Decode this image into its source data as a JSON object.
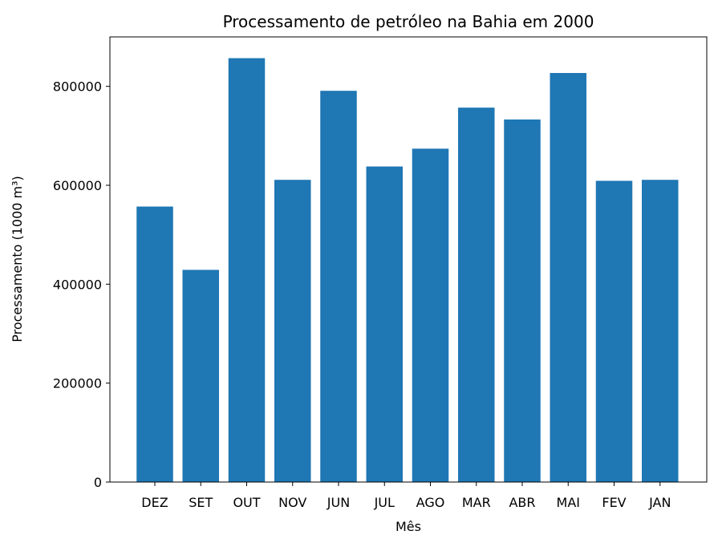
{
  "chart_data": {
    "type": "bar",
    "title": "Processamento de petróleo na Bahia em 2000",
    "xlabel": "Mês",
    "ylabel": "Processamento (1000 m³)",
    "categories": [
      "DEZ",
      "SET",
      "OUT",
      "NOV",
      "JUN",
      "JUL",
      "AGO",
      "MAR",
      "ABR",
      "MAI",
      "FEV",
      "JAN"
    ],
    "values": [
      557000,
      429000,
      857000,
      611000,
      791000,
      638000,
      674000,
      757000,
      733000,
      827000,
      609000,
      611000
    ],
    "ylim": [
      0,
      900000
    ],
    "yticks": [
      0,
      200000,
      400000,
      600000,
      800000
    ],
    "ytick_labels": [
      "0",
      "200000",
      "400000",
      "600000",
      "800000"
    ],
    "grid": false,
    "bar_color": "#1f77b4"
  }
}
